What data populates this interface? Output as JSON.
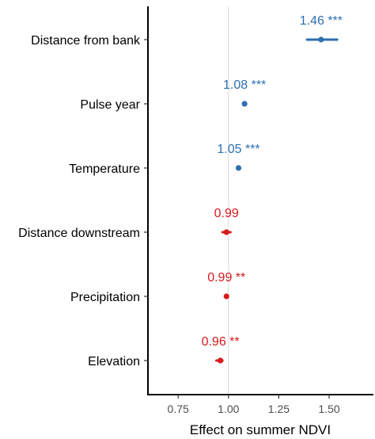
{
  "chart_data": {
    "type": "scatter",
    "subtype": "forest-plot",
    "xlabel": "Effect on summer NDVI",
    "xlim": [
      0.6,
      1.72
    ],
    "xticks": [
      0.75,
      1.0,
      1.25,
      1.5
    ],
    "xtick_labels": [
      "0.75",
      "1.00",
      "1.25",
      "1.50"
    ],
    "reference_line": 1.0,
    "grid": false,
    "colors": {
      "positive": "#2e6fb0",
      "negative": "#d7191c",
      "reference": "#d9d9d9"
    },
    "rows": [
      {
        "category": "Distance from bank",
        "estimate": 1.46,
        "ci_low": 1.39,
        "ci_high": 1.54,
        "label": "1.46 ***",
        "direction": "positive"
      },
      {
        "category": "Pulse year",
        "estimate": 1.08,
        "ci_low": 1.08,
        "ci_high": 1.08,
        "label": "1.08 ***",
        "direction": "positive"
      },
      {
        "category": "Temperature",
        "estimate": 1.05,
        "ci_low": 1.05,
        "ci_high": 1.05,
        "label": "1.05 ***",
        "direction": "positive"
      },
      {
        "category": "Distance downstream",
        "estimate": 0.99,
        "ci_low": 0.97,
        "ci_high": 1.01,
        "label": "0.99",
        "direction": "negative"
      },
      {
        "category": "Precipitation",
        "estimate": 0.99,
        "ci_low": 0.99,
        "ci_high": 0.99,
        "label": "0.99 **",
        "direction": "negative"
      },
      {
        "category": "Elevation",
        "estimate": 0.96,
        "ci_low": 0.94,
        "ci_high": 0.97,
        "label": "0.96 **",
        "direction": "negative"
      }
    ]
  }
}
